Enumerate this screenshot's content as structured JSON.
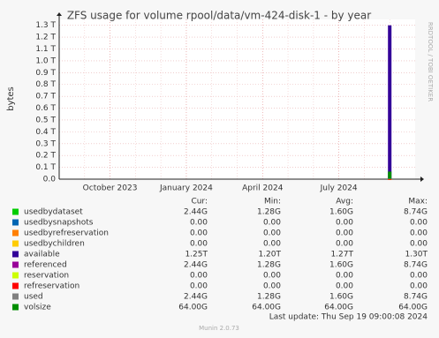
{
  "chart_data": {
    "type": "bar",
    "title": "ZFS usage for volume rpool/data/vm-424-disk-1 - by year",
    "y_label": "bytes",
    "side_text": "RRDTOOL / TOBI OETIKER",
    "x": [
      "2024-09"
    ],
    "xlim": [
      "2023-08",
      "2024-10"
    ],
    "xticks": [
      {
        "value": "2023-10",
        "label": "October 2023"
      },
      {
        "value": "2024-01",
        "label": "January 2024"
      },
      {
        "value": "2024-04",
        "label": "April 2024"
      },
      {
        "value": "2024-07",
        "label": "July 2024"
      }
    ],
    "ylim": [
      0,
      1.35
    ],
    "yticks": [
      {
        "value": 0,
        "label": "0.0"
      },
      {
        "value": 0.1,
        "label": "0.1 T"
      },
      {
        "value": 0.2,
        "label": "0.2 T"
      },
      {
        "value": 0.3,
        "label": "0.3 T"
      },
      {
        "value": 0.4,
        "label": "0.4 T"
      },
      {
        "value": 0.5,
        "label": "0.5 T"
      },
      {
        "value": 0.6,
        "label": "0.6 T"
      },
      {
        "value": 0.7,
        "label": "0.7 T"
      },
      {
        "value": 0.8,
        "label": "0.8 T"
      },
      {
        "value": 0.9,
        "label": "0.9 T"
      },
      {
        "value": 1.0,
        "label": "1.0 T"
      },
      {
        "value": 1.1,
        "label": "1.1 T"
      },
      {
        "value": 1.2,
        "label": "1.2 T"
      },
      {
        "value": 1.3,
        "label": "1.3 T"
      }
    ],
    "grid": true,
    "stat_headers": [
      "Cur:",
      "Min:",
      "Avg:",
      "Max:"
    ],
    "series": [
      {
        "name": "usedbydataset",
        "color": "#00cc00",
        "values": [
          0.00244
        ],
        "stats": [
          "2.44G",
          "1.28G",
          "1.60G",
          "8.74G"
        ]
      },
      {
        "name": "usedbysnapshots",
        "color": "#0066b3",
        "values": [
          0
        ],
        "stats": [
          "0.00",
          "0.00",
          "0.00",
          "0.00"
        ]
      },
      {
        "name": "usedbyrefreservation",
        "color": "#ff8000",
        "values": [
          0
        ],
        "stats": [
          "0.00",
          "0.00",
          "0.00",
          "0.00"
        ]
      },
      {
        "name": "usedbychildren",
        "color": "#ffcc00",
        "values": [
          0
        ],
        "stats": [
          "0.00",
          "0.00",
          "0.00",
          "0.00"
        ]
      },
      {
        "name": "available",
        "color": "#330099",
        "values": [
          1.3
        ],
        "stats": [
          "1.25T",
          "1.20T",
          "1.27T",
          "1.30T"
        ]
      },
      {
        "name": "referenced",
        "color": "#990099",
        "values": [
          0.00244
        ],
        "stats": [
          "2.44G",
          "1.28G",
          "1.60G",
          "8.74G"
        ]
      },
      {
        "name": "reservation",
        "color": "#ccff00",
        "values": [
          0
        ],
        "stats": [
          "0.00",
          "0.00",
          "0.00",
          "0.00"
        ]
      },
      {
        "name": "refreservation",
        "color": "#ff0000",
        "values": [
          0
        ],
        "stats": [
          "0.00",
          "0.00",
          "0.00",
          "0.00"
        ]
      },
      {
        "name": "used",
        "color": "#808080",
        "values": [
          0.00244
        ],
        "stats": [
          "2.44G",
          "1.28G",
          "1.60G",
          "8.74G"
        ]
      },
      {
        "name": "volsize",
        "color": "#008f00",
        "values": [
          0.064
        ],
        "stats": [
          "64.00G",
          "64.00G",
          "64.00G",
          "64.00G"
        ]
      }
    ],
    "last_update": "Last update: Thu Sep 19 09:00:08 2024",
    "footer": "Munin 2.0.73"
  }
}
